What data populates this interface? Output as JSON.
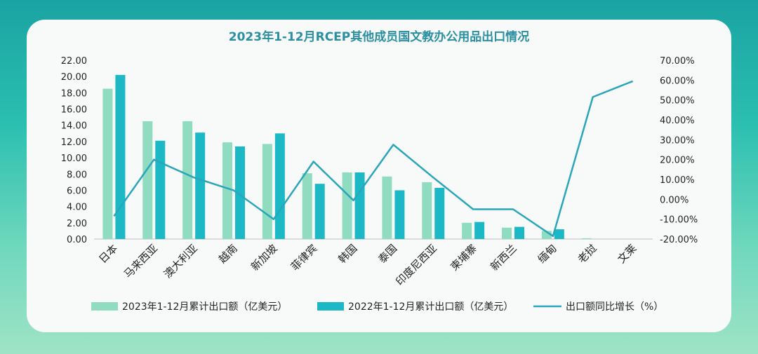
{
  "colors": {
    "series_2023": "#8fdcc0",
    "series_2022": "#1db8c6",
    "growth_line": "#2aa6ba",
    "title": "#2a8fa0",
    "text": "#222222",
    "axis": "#bfbfbf"
  },
  "chart_data": {
    "type": "bar",
    "title": "2023年1-12月RCEP其他成员国文教办公用品出口情况",
    "categories": [
      "日本",
      "马来西亚",
      "澳大利亚",
      "越南",
      "新加坡",
      "菲律宾",
      "韩国",
      "泰国",
      "印度尼西亚",
      "柬埔寨",
      "新西兰",
      "缅甸",
      "老挝",
      "文莱"
    ],
    "series": [
      {
        "name": "2023年1-12月累计出口额（亿美元）",
        "type": "bar",
        "axis": "left",
        "values": [
          18.5,
          14.5,
          14.5,
          11.9,
          11.7,
          8.1,
          8.2,
          7.7,
          7.0,
          2.0,
          1.4,
          1.0,
          0.1,
          0.0
        ]
      },
      {
        "name": "2022年1-12月累计出口额（亿美元）",
        "type": "bar",
        "axis": "left",
        "values": [
          20.2,
          12.1,
          13.1,
          11.4,
          13.0,
          6.8,
          8.2,
          6.0,
          6.3,
          2.1,
          1.5,
          1.2,
          0.0,
          0.0
        ]
      },
      {
        "name": "出口额同比增长（%）",
        "type": "line",
        "axis": "right",
        "values": [
          -8.5,
          20.0,
          11.0,
          4.5,
          -10.0,
          19.0,
          -0.5,
          27.5,
          11.0,
          -5.0,
          -5.0,
          -18.5,
          51.5,
          59.5
        ]
      }
    ],
    "left_axis": {
      "ylim": [
        0,
        22
      ],
      "ticks": [
        "0.00",
        "2.00",
        "4.00",
        "6.00",
        "8.00",
        "10.00",
        "12.00",
        "14.00",
        "16.00",
        "18.00",
        "20.00",
        "22.00"
      ]
    },
    "right_axis": {
      "ylim": [
        -20,
        70
      ],
      "ticks": [
        "-20.00%",
        "-10.00%",
        "0.00%",
        "10.00%",
        "20.00%",
        "30.00%",
        "40.00%",
        "50.00%",
        "60.00%",
        "70.00%"
      ]
    },
    "legend_position": "bottom",
    "grid": false
  }
}
